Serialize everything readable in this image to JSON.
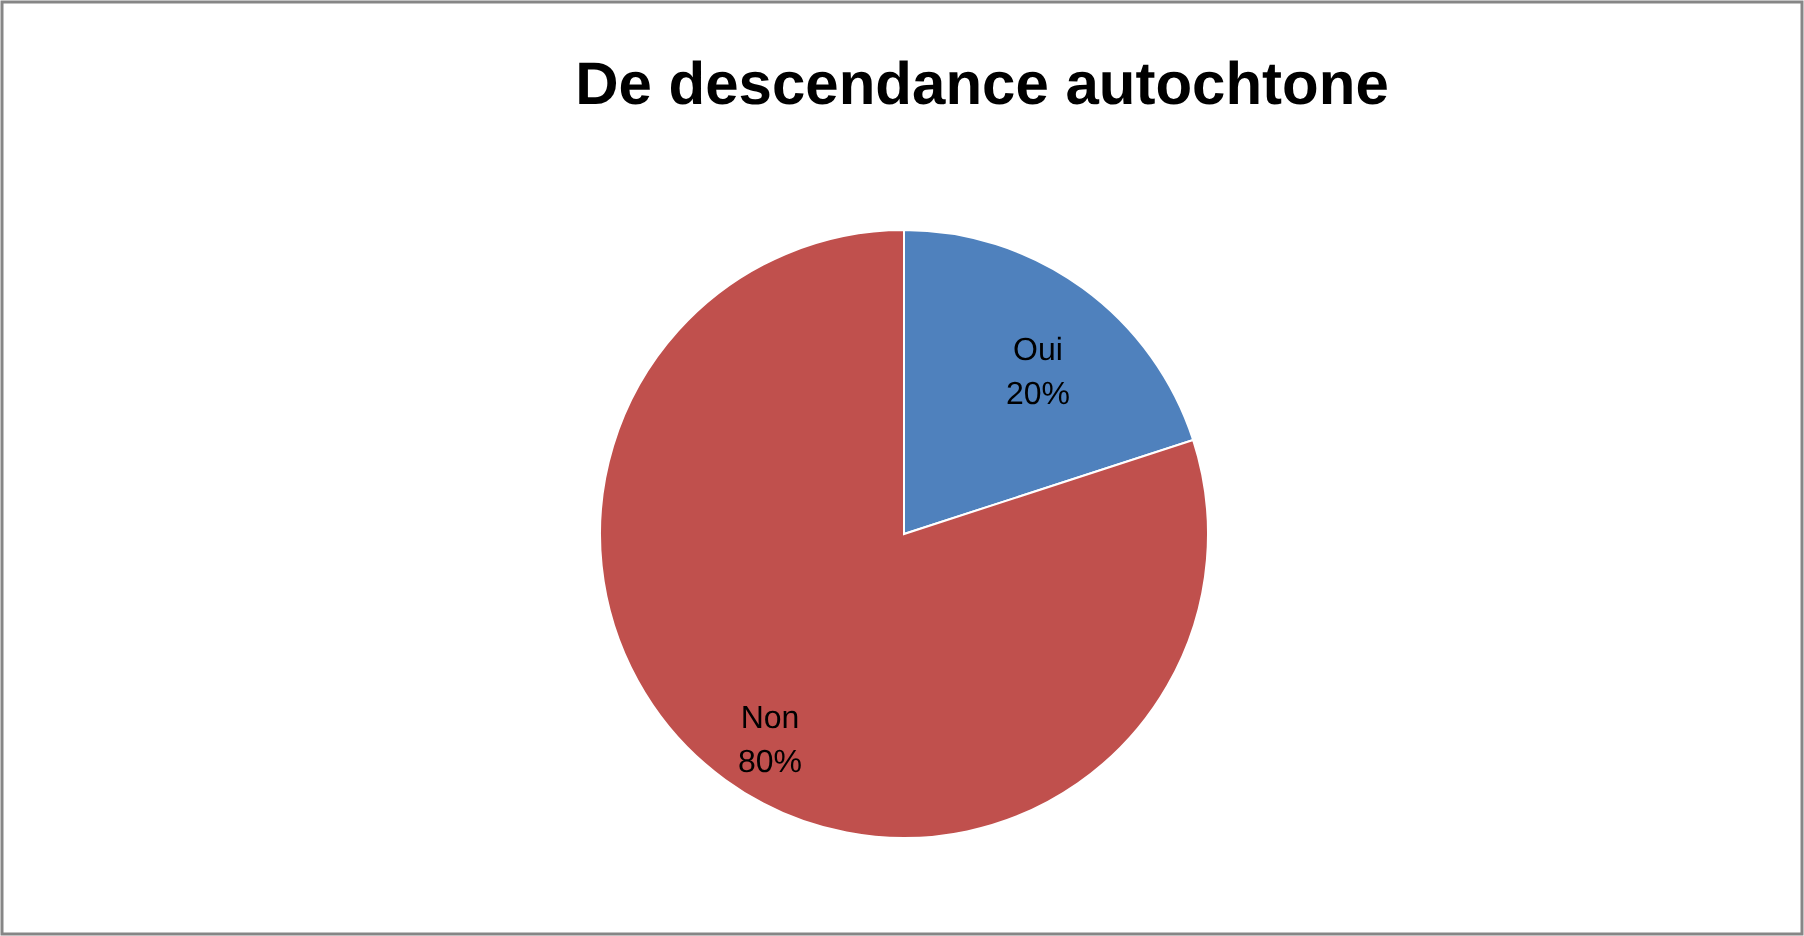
{
  "chart_data": {
    "type": "pie",
    "title": "De descendance autochtone",
    "categories": [
      "Oui",
      "Non"
    ],
    "values": [
      20,
      80
    ],
    "colors": [
      "#4f81bd",
      "#c0504d"
    ],
    "value_labels": [
      "20%",
      "80%"
    ]
  }
}
